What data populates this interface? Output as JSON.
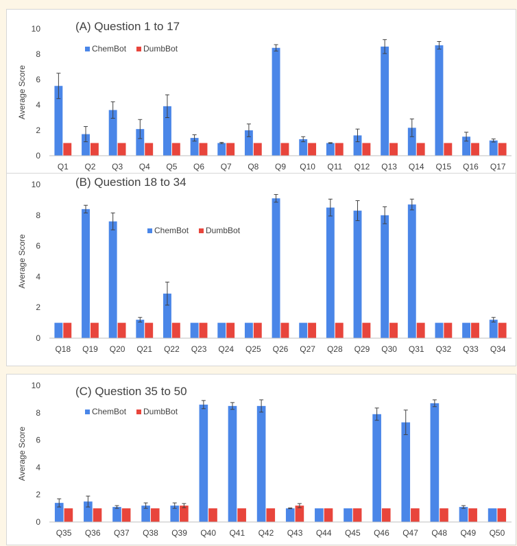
{
  "chart_data": [
    {
      "type": "bar",
      "title": "(A) Question 1 to 17",
      "ylabel": "Average Score",
      "ylim": [
        0,
        10
      ],
      "yticks": [
        0,
        2,
        4,
        6,
        8,
        10
      ],
      "legend_position": "top-left",
      "categories": [
        "Q1",
        "Q2",
        "Q3",
        "Q4",
        "Q5",
        "Q6",
        "Q7",
        "Q8",
        "Q9",
        "Q10",
        "Q11",
        "Q12",
        "Q13",
        "Q14",
        "Q15",
        "Q16",
        "Q17"
      ],
      "series": [
        {
          "name": "ChemBot",
          "color": "#4a86e8",
          "values": [
            5.5,
            1.7,
            3.6,
            2.1,
            3.9,
            1.4,
            1.0,
            2.0,
            8.5,
            1.3,
            1.0,
            1.6,
            8.6,
            2.2,
            8.7,
            1.5,
            1.2
          ],
          "errors": [
            1.0,
            0.6,
            0.65,
            0.75,
            0.9,
            0.25,
            0.05,
            0.5,
            0.25,
            0.2,
            0.03,
            0.5,
            0.55,
            0.7,
            0.3,
            0.35,
            0.12
          ]
        },
        {
          "name": "DumbBot",
          "color": "#e8453c",
          "values": [
            1,
            1,
            1,
            1,
            1,
            1,
            1,
            1,
            1,
            1,
            1,
            1,
            1,
            1,
            1,
            1,
            1
          ],
          "errors": [
            0,
            0,
            0,
            0,
            0,
            0,
            0,
            0,
            0,
            0,
            0,
            0,
            0,
            0,
            0,
            0,
            0
          ]
        }
      ]
    },
    {
      "type": "bar",
      "title": "(B) Question 18 to 34",
      "ylabel": "Average Score",
      "ylim": [
        0,
        10
      ],
      "yticks": [
        0,
        2,
        4,
        6,
        8,
        10
      ],
      "legend_position": "top-center",
      "categories": [
        "Q18",
        "Q19",
        "Q20",
        "Q21",
        "Q22",
        "Q23",
        "Q24",
        "Q25",
        "Q26",
        "Q27",
        "Q28",
        "Q29",
        "Q30",
        "Q31",
        "Q32",
        "Q33",
        "Q34"
      ],
      "series": [
        {
          "name": "ChemBot",
          "color": "#4a86e8",
          "values": [
            1.0,
            8.4,
            7.6,
            1.2,
            2.9,
            1.0,
            1.0,
            1.0,
            9.1,
            1.0,
            8.5,
            8.3,
            8.0,
            8.7,
            1.0,
            1.0,
            1.2
          ],
          "errors": [
            0,
            0.25,
            0.55,
            0.15,
            0.75,
            0,
            0,
            0,
            0.25,
            0,
            0.55,
            0.65,
            0.55,
            0.35,
            0,
            0,
            0.15
          ]
        },
        {
          "name": "DumbBot",
          "color": "#e8453c",
          "values": [
            1,
            1,
            1,
            1,
            1,
            1,
            1,
            1,
            1,
            1,
            1,
            1,
            1,
            1,
            1,
            1,
            1
          ],
          "errors": [
            0,
            0,
            0,
            0,
            0,
            0,
            0,
            0,
            0,
            0,
            0,
            0,
            0,
            0,
            0,
            0,
            0
          ]
        }
      ]
    },
    {
      "type": "bar",
      "title": "(C) Question 35 to 50",
      "ylabel": "Average Score",
      "ylim": [
        0,
        10
      ],
      "yticks": [
        0,
        2,
        4,
        6,
        8,
        10
      ],
      "legend_position": "top-left",
      "categories": [
        "Q35",
        "Q36",
        "Q37",
        "Q38",
        "Q39",
        "Q40",
        "Q41",
        "Q42",
        "Q43",
        "Q44",
        "Q45",
        "Q46",
        "Q47",
        "Q48",
        "Q49",
        "Q50"
      ],
      "series": [
        {
          "name": "ChemBot",
          "color": "#4a86e8",
          "values": [
            1.4,
            1.5,
            1.1,
            1.2,
            1.2,
            8.6,
            8.5,
            8.5,
            1.0,
            1.0,
            1.0,
            7.9,
            7.3,
            8.7,
            1.1,
            1.0
          ],
          "errors": [
            0.3,
            0.4,
            0.1,
            0.2,
            0.2,
            0.3,
            0.25,
            0.45,
            0.03,
            0,
            0,
            0.45,
            0.9,
            0.25,
            0.1,
            0
          ]
        },
        {
          "name": "DumbBot",
          "color": "#e8453c",
          "values": [
            1.0,
            1.0,
            1.0,
            1.0,
            1.2,
            1.0,
            1.0,
            1.0,
            1.2,
            1.0,
            1.0,
            1.0,
            1.0,
            1.0,
            1.0,
            1.0
          ],
          "errors": [
            0,
            0,
            0,
            0,
            0.15,
            0,
            0,
            0,
            0.15,
            0,
            0,
            0,
            0,
            0,
            0,
            0
          ]
        }
      ]
    }
  ]
}
